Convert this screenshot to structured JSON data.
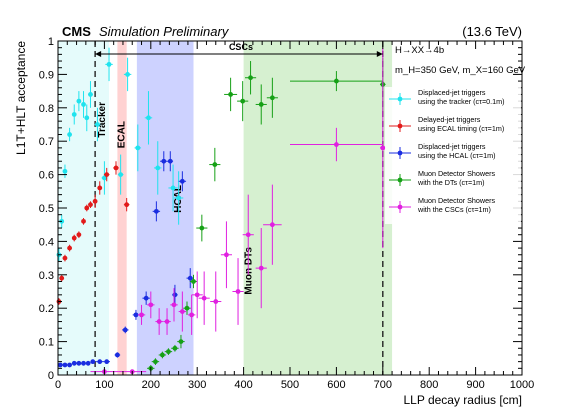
{
  "header": {
    "cms": "CMS",
    "preliminary": "Simulation Preliminary",
    "energy": "(13.6 TeV)"
  },
  "chart_data": {
    "type": "scatter",
    "xlabel": "LLP decay radius [cm]",
    "ylabel": "L1T+HLT acceptance",
    "xlim": [
      0,
      1000
    ],
    "ylim": [
      0,
      1
    ],
    "x_ticks": [
      0,
      100,
      200,
      300,
      400,
      500,
      600,
      700,
      800,
      900,
      1000
    ],
    "y_ticks": [
      0,
      0.1,
      0.2,
      0.3,
      0.4,
      0.5,
      0.6,
      0.7,
      0.8,
      0.9,
      1
    ],
    "grid": false,
    "legend_position": "right",
    "annotations": {
      "process": "H→XX→4b",
      "masses": "m_H=350 GeV, m_X=160 GeV",
      "cscs_label": "CSCs"
    },
    "regions": [
      {
        "label": "Tracker",
        "x0": 0,
        "x1": 110,
        "color": "#e5fbfb",
        "label_color": "#14b4b4"
      },
      {
        "label": "ECAL",
        "x0": 128,
        "x1": 148,
        "color": "#ffd2d2",
        "label_color": "#e02020"
      },
      {
        "label": "HCAL",
        "x0": 170,
        "x1": 292,
        "color": "#cdd2ff",
        "label_color": "#2030e0"
      },
      {
        "label": "Muon DTs",
        "x0": 400,
        "x1": 720,
        "color": "#d6f0d0",
        "label_color": "#2e9a2e"
      }
    ],
    "boundaries": [
      80,
      700
    ],
    "series": [
      {
        "name": "Displaced-jet triggers using the tracker (cτ=0.1m)",
        "color": "#1fe3ee",
        "points": [
          {
            "x": 2,
            "y": 0.36,
            "xerr": 2,
            "yerr": 0.02
          },
          {
            "x": 8,
            "y": 0.46,
            "xerr": 3,
            "yerr": 0.02
          },
          {
            "x": 15,
            "y": 0.61,
            "xerr": 3,
            "yerr": 0.02
          },
          {
            "x": 25,
            "y": 0.72,
            "xerr": 4,
            "yerr": 0.02
          },
          {
            "x": 35,
            "y": 0.78,
            "xerr": 4,
            "yerr": 0.03
          },
          {
            "x": 45,
            "y": 0.82,
            "xerr": 4,
            "yerr": 0.03
          },
          {
            "x": 55,
            "y": 0.81,
            "xerr": 4,
            "yerr": 0.04
          },
          {
            "x": 62,
            "y": 0.77,
            "xerr": 3,
            "yerr": 0.04
          },
          {
            "x": 70,
            "y": 0.84,
            "xerr": 5,
            "yerr": 0.04
          },
          {
            "x": 85,
            "y": 0.75,
            "xerr": 6,
            "yerr": 0.05
          },
          {
            "x": 100,
            "y": 0.59,
            "xerr": 6,
            "yerr": 0.05
          },
          {
            "x": 110,
            "y": 0.93,
            "xerr": 8,
            "yerr": 0.05
          },
          {
            "x": 135,
            "y": 0.6,
            "xerr": 6,
            "yerr": 0.06
          },
          {
            "x": 150,
            "y": 0.9,
            "xerr": 8,
            "yerr": 0.05
          },
          {
            "x": 172,
            "y": 0.68,
            "xerr": 7,
            "yerr": 0.07
          },
          {
            "x": 195,
            "y": 0.77,
            "xerr": 8,
            "yerr": 0.08
          },
          {
            "x": 215,
            "y": 0.62,
            "xerr": 8,
            "yerr": 0.08
          },
          {
            "x": 248,
            "y": 0.56,
            "xerr": 10,
            "yerr": 0.07
          },
          {
            "x": 260,
            "y": 0.53,
            "xerr": 10,
            "yerr": 0.08
          }
        ]
      },
      {
        "name": "Delayed-jet triggers using ECAL timing (cτ=1m)",
        "color": "#e21a1a",
        "points": [
          {
            "x": 2,
            "y": 0.22,
            "xerr": 2,
            "yerr": 0.01
          },
          {
            "x": 8,
            "y": 0.29,
            "xerr": 3,
            "yerr": 0.01
          },
          {
            "x": 15,
            "y": 0.35,
            "xerr": 3,
            "yerr": 0.01
          },
          {
            "x": 25,
            "y": 0.38,
            "xerr": 4,
            "yerr": 0.01
          },
          {
            "x": 35,
            "y": 0.41,
            "xerr": 4,
            "yerr": 0.01
          },
          {
            "x": 45,
            "y": 0.42,
            "xerr": 4,
            "yerr": 0.01
          },
          {
            "x": 55,
            "y": 0.46,
            "xerr": 4,
            "yerr": 0.01
          },
          {
            "x": 62,
            "y": 0.5,
            "xerr": 4,
            "yerr": 0.01
          },
          {
            "x": 70,
            "y": 0.51,
            "xerr": 4,
            "yerr": 0.01
          },
          {
            "x": 80,
            "y": 0.52,
            "xerr": 4,
            "yerr": 0.02
          },
          {
            "x": 90,
            "y": 0.56,
            "xerr": 5,
            "yerr": 0.02
          },
          {
            "x": 105,
            "y": 0.6,
            "xerr": 6,
            "yerr": 0.02
          },
          {
            "x": 125,
            "y": 0.62,
            "xerr": 6,
            "yerr": 0.02
          },
          {
            "x": 148,
            "y": 0.51,
            "xerr": 6,
            "yerr": 0.02
          }
        ]
      },
      {
        "name": "Displaced-jet triggers using the HCAL (cτ=1m)",
        "color": "#1a2de0",
        "points": [
          {
            "x": 5,
            "y": 0.03,
            "xerr": 5,
            "yerr": 0.005
          },
          {
            "x": 15,
            "y": 0.03,
            "xerr": 5,
            "yerr": 0.005
          },
          {
            "x": 25,
            "y": 0.03,
            "xerr": 5,
            "yerr": 0.005
          },
          {
            "x": 35,
            "y": 0.035,
            "xerr": 5,
            "yerr": 0.005
          },
          {
            "x": 45,
            "y": 0.035,
            "xerr": 5,
            "yerr": 0.005
          },
          {
            "x": 55,
            "y": 0.035,
            "xerr": 5,
            "yerr": 0.005
          },
          {
            "x": 65,
            "y": 0.035,
            "xerr": 5,
            "yerr": 0.005
          },
          {
            "x": 75,
            "y": 0.04,
            "xerr": 5,
            "yerr": 0.005
          },
          {
            "x": 90,
            "y": 0.04,
            "xerr": 8,
            "yerr": 0.006
          },
          {
            "x": 105,
            "y": 0.04,
            "xerr": 7,
            "yerr": 0.006
          },
          {
            "x": 128,
            "y": 0.06,
            "xerr": 6,
            "yerr": 0.008
          },
          {
            "x": 145,
            "y": 0.135,
            "xerr": 7,
            "yerr": 0.01
          },
          {
            "x": 168,
            "y": 0.18,
            "xerr": 7,
            "yerr": 0.015
          },
          {
            "x": 190,
            "y": 0.23,
            "xerr": 8,
            "yerr": 0.02
          },
          {
            "x": 212,
            "y": 0.49,
            "xerr": 8,
            "yerr": 0.03
          },
          {
            "x": 228,
            "y": 0.64,
            "xerr": 8,
            "yerr": 0.03
          },
          {
            "x": 242,
            "y": 0.64,
            "xerr": 6,
            "yerr": 0.03
          },
          {
            "x": 252,
            "y": 0.24,
            "xerr": 6,
            "yerr": 0.03
          },
          {
            "x": 268,
            "y": 0.58,
            "xerr": 8,
            "yerr": 0.03
          },
          {
            "x": 285,
            "y": 0.29,
            "xerr": 8,
            "yerr": 0.03
          }
        ]
      },
      {
        "name": "Muon Detector Showers with the DTs (cτ=1m)",
        "color": "#16a016",
        "points": [
          {
            "x": 200,
            "y": 0.02,
            "xerr": 8,
            "yerr": 0.01
          },
          {
            "x": 210,
            "y": 0.04,
            "xerr": 8,
            "yerr": 0.01
          },
          {
            "x": 225,
            "y": 0.06,
            "xerr": 8,
            "yerr": 0.01
          },
          {
            "x": 238,
            "y": 0.07,
            "xerr": 8,
            "yerr": 0.01
          },
          {
            "x": 252,
            "y": 0.08,
            "xerr": 8,
            "yerr": 0.01
          },
          {
            "x": 265,
            "y": 0.1,
            "xerr": 8,
            "yerr": 0.02
          },
          {
            "x": 278,
            "y": 0.2,
            "xerr": 8,
            "yerr": 0.02
          },
          {
            "x": 292,
            "y": 0.28,
            "xerr": 8,
            "yerr": 0.02
          },
          {
            "x": 310,
            "y": 0.44,
            "xerr": 12,
            "yerr": 0.04
          },
          {
            "x": 338,
            "y": 0.63,
            "xerr": 12,
            "yerr": 0.05
          },
          {
            "x": 372,
            "y": 0.84,
            "xerr": 14,
            "yerr": 0.05
          },
          {
            "x": 398,
            "y": 0.82,
            "xerr": 12,
            "yerr": 0.06
          },
          {
            "x": 415,
            "y": 0.89,
            "xerr": 12,
            "yerr": 0.05
          },
          {
            "x": 438,
            "y": 0.81,
            "xerr": 12,
            "yerr": 0.06
          },
          {
            "x": 462,
            "y": 0.83,
            "xerr": 12,
            "yerr": 0.06
          },
          {
            "x": 600,
            "y": 0.88,
            "xerr": 100,
            "yerr": 0.03
          },
          {
            "x": 700,
            "y": 0.87,
            "xerr": 6,
            "yerr": 0.08
          }
        ]
      },
      {
        "name": "Muon Detector Showers with the CSCs (cτ=1m)",
        "color": "#e020e0",
        "points": [
          {
            "x": 100,
            "y": 0.01,
            "xerr": 30,
            "yerr": 0.005
          },
          {
            "x": 160,
            "y": 0.01,
            "xerr": 30,
            "yerr": 0.005
          },
          {
            "x": 180,
            "y": 0.18,
            "xerr": 8,
            "yerr": 0.03
          },
          {
            "x": 200,
            "y": 0.21,
            "xerr": 8,
            "yerr": 0.04
          },
          {
            "x": 218,
            "y": 0.16,
            "xerr": 8,
            "yerr": 0.04
          },
          {
            "x": 235,
            "y": 0.16,
            "xerr": 8,
            "yerr": 0.04
          },
          {
            "x": 250,
            "y": 0.21,
            "xerr": 8,
            "yerr": 0.05
          },
          {
            "x": 268,
            "y": 0.19,
            "xerr": 8,
            "yerr": 0.06
          },
          {
            "x": 288,
            "y": 0.18,
            "xerr": 8,
            "yerr": 0.06
          },
          {
            "x": 300,
            "y": 0.24,
            "xerr": 12,
            "yerr": 0.07
          },
          {
            "x": 315,
            "y": 0.23,
            "xerr": 12,
            "yerr": 0.08
          },
          {
            "x": 340,
            "y": 0.22,
            "xerr": 12,
            "yerr": 0.09
          },
          {
            "x": 363,
            "y": 0.36,
            "xerr": 12,
            "yerr": 0.1
          },
          {
            "x": 388,
            "y": 0.25,
            "xerr": 12,
            "yerr": 0.1
          },
          {
            "x": 410,
            "y": 0.42,
            "xerr": 12,
            "yerr": 0.12
          },
          {
            "x": 438,
            "y": 0.32,
            "xerr": 12,
            "yerr": 0.12
          },
          {
            "x": 462,
            "y": 0.45,
            "xerr": 20,
            "yerr": 0.12
          },
          {
            "x": 600,
            "y": 0.69,
            "xerr": 100,
            "yerr": 0.05
          },
          {
            "x": 700,
            "y": 0.68,
            "xerr": 6,
            "yerr": 0.3
          }
        ]
      }
    ]
  }
}
